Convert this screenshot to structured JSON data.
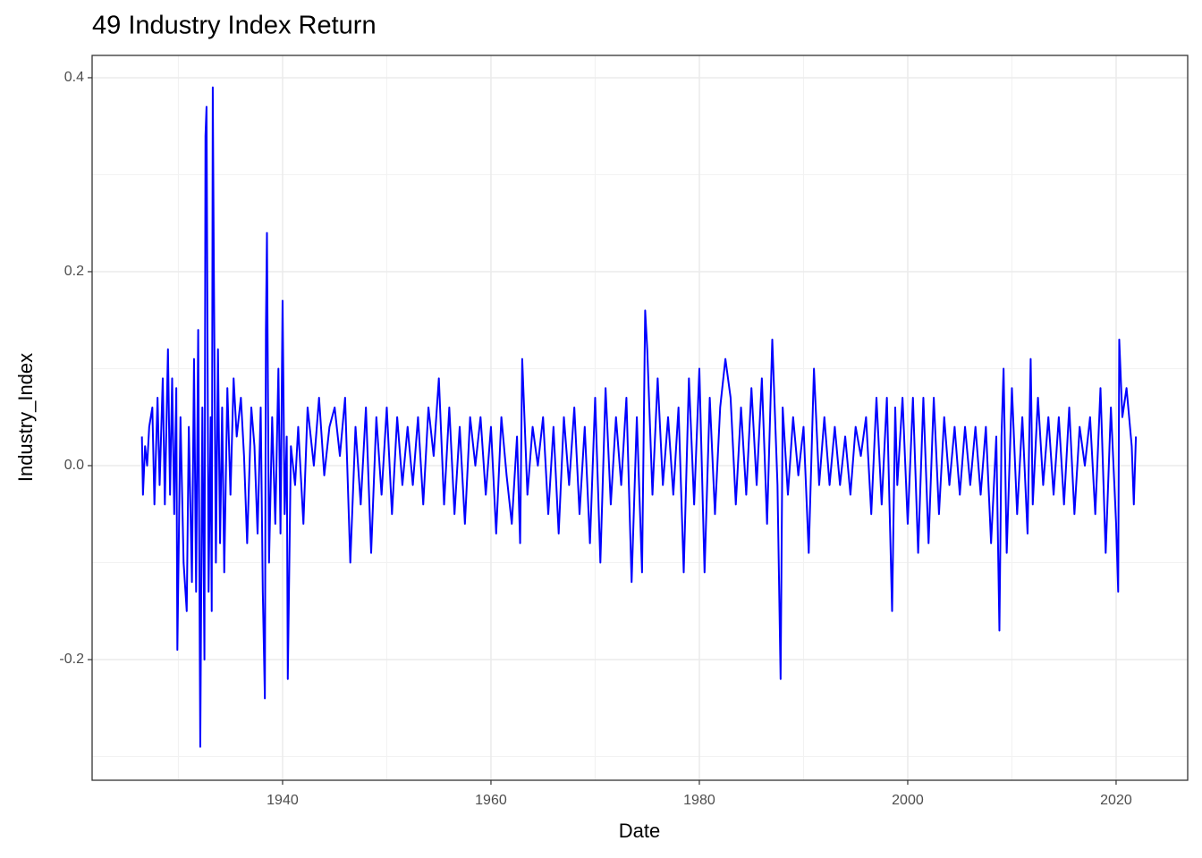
{
  "chart_data": {
    "type": "line",
    "title": "49 Industry Index Return",
    "x_label": "Date",
    "y_label": "Industry_Index",
    "xlim": [
      1921.72,
      2026.87
    ],
    "ylim": [
      -0.3244,
      0.423
    ],
    "xticks": [
      1940,
      1960,
      1980,
      2000,
      2020
    ],
    "yticks": [
      -0.2,
      {
        "value": 0,
        "label": "0.0"
      },
      0.2,
      0.4
    ],
    "xminor": [
      1930,
      1950,
      1970,
      1990,
      2010
    ],
    "yminor": [
      -0.3,
      -0.1,
      0.1,
      0.3
    ],
    "grid": true,
    "series": [
      {
        "name": "Industry_Index",
        "color": "#0000ff",
        "x": [
          1926.5,
          1926.6,
          1926.8,
          1927,
          1927.2,
          1927.5,
          1927.7,
          1928,
          1928.2,
          1928.5,
          1928.7,
          1929,
          1929.2,
          1929.4,
          1929.6,
          1929.8,
          1929.9,
          1930.2,
          1930.5,
          1930.8,
          1931,
          1931.3,
          1931.5,
          1931.7,
          1931.9,
          1932.1,
          1932.3,
          1932.5,
          1932.6,
          1932.7,
          1932.9,
          1933.1,
          1933.2,
          1933.3,
          1933.4,
          1933.6,
          1933.8,
          1934,
          1934.2,
          1934.4,
          1934.7,
          1935,
          1935.3,
          1935.6,
          1936,
          1936.3,
          1936.6,
          1937,
          1937.3,
          1937.6,
          1937.9,
          1938.1,
          1938.3,
          1938.4,
          1938.5,
          1938.7,
          1939,
          1939.3,
          1939.6,
          1939.8,
          1940,
          1940.2,
          1940.4,
          1940.5,
          1940.8,
          1941.2,
          1941.5,
          1942,
          1942.4,
          1943,
          1943.5,
          1944,
          1944.5,
          1945,
          1945.5,
          1946,
          1946.5,
          1947,
          1947.5,
          1948,
          1948.5,
          1949,
          1949.5,
          1950,
          1950.5,
          1951,
          1951.5,
          1952,
          1952.5,
          1953,
          1953.5,
          1954,
          1954.5,
          1955,
          1955.5,
          1956,
          1956.5,
          1957,
          1957.5,
          1958,
          1958.5,
          1959,
          1959.5,
          1960,
          1960.5,
          1961,
          1961.5,
          1962,
          1962.5,
          1962.8,
          1963,
          1963.5,
          1964,
          1964.5,
          1965,
          1965.5,
          1966,
          1966.5,
          1967,
          1967.5,
          1968,
          1968.5,
          1969,
          1969.5,
          1970,
          1970.5,
          1971,
          1971.5,
          1972,
          1972.5,
          1973,
          1973.5,
          1974,
          1974.5,
          1974.8,
          1975,
          1975.5,
          1976,
          1976.5,
          1977,
          1977.5,
          1978,
          1978.5,
          1979,
          1979.5,
          1980,
          1980.5,
          1981,
          1981.5,
          1982,
          1982.5,
          1983,
          1983.5,
          1984,
          1984.5,
          1985,
          1985.5,
          1986,
          1986.5,
          1987,
          1987.5,
          1987.8,
          1988,
          1988.5,
          1989,
          1989.5,
          1990,
          1990.5,
          1991,
          1991.5,
          1992,
          1992.5,
          1993,
          1993.5,
          1994,
          1994.5,
          1995,
          1995.5,
          1996,
          1996.5,
          1997,
          1997.5,
          1998,
          1998.5,
          1998.8,
          1999,
          1999.5,
          2000,
          2000.5,
          2001,
          2001.5,
          2002,
          2002.5,
          2003,
          2003.5,
          2004,
          2004.5,
          2005,
          2005.5,
          2006,
          2006.5,
          2007,
          2007.5,
          2008,
          2008.5,
          2008.8,
          2009,
          2009.2,
          2009.5,
          2010,
          2010.5,
          2011,
          2011.5,
          2011.8,
          2012,
          2012.5,
          2013,
          2013.5,
          2014,
          2014.5,
          2015,
          2015.5,
          2016,
          2016.5,
          2017,
          2017.5,
          2018,
          2018.5,
          2019,
          2019.5,
          2020,
          2020.2,
          2020.3,
          2020.6,
          2021,
          2021.5,
          2021.7,
          2021.9
        ],
        "values": [
          0.03,
          -0.03,
          0.02,
          0.0,
          0.04,
          0.06,
          -0.04,
          0.07,
          -0.02,
          0.09,
          -0.04,
          0.12,
          -0.03,
          0.09,
          -0.05,
          0.08,
          -0.19,
          0.05,
          -0.1,
          -0.15,
          0.04,
          -0.12,
          0.11,
          -0.13,
          0.14,
          -0.29,
          0.06,
          -0.2,
          0.34,
          0.37,
          -0.13,
          0.05,
          -0.15,
          0.39,
          0.21,
          -0.1,
          0.12,
          -0.08,
          0.06,
          -0.11,
          0.08,
          -0.03,
          0.09,
          0.03,
          0.07,
          0.01,
          -0.08,
          0.06,
          0.02,
          -0.07,
          0.06,
          -0.13,
          -0.24,
          0.14,
          0.24,
          -0.1,
          0.05,
          -0.06,
          0.1,
          -0.07,
          0.17,
          -0.05,
          0.03,
          -0.22,
          0.02,
          -0.02,
          0.04,
          -0.06,
          0.06,
          0.0,
          0.07,
          -0.01,
          0.04,
          0.06,
          0.01,
          0.07,
          -0.1,
          0.04,
          -0.04,
          0.06,
          -0.09,
          0.05,
          -0.03,
          0.06,
          -0.05,
          0.05,
          -0.02,
          0.04,
          -0.02,
          0.05,
          -0.04,
          0.06,
          0.01,
          0.09,
          -0.04,
          0.06,
          -0.05,
          0.04,
          -0.06,
          0.05,
          0.0,
          0.05,
          -0.03,
          0.04,
          -0.07,
          0.05,
          -0.01,
          -0.06,
          0.03,
          -0.08,
          0.11,
          -0.03,
          0.04,
          0.0,
          0.05,
          -0.05,
          0.04,
          -0.07,
          0.05,
          -0.02,
          0.06,
          -0.05,
          0.04,
          -0.08,
          0.07,
          -0.1,
          0.08,
          -0.04,
          0.05,
          -0.02,
          0.07,
          -0.12,
          0.05,
          -0.11,
          0.16,
          0.12,
          -0.03,
          0.09,
          -0.02,
          0.05,
          -0.03,
          0.06,
          -0.11,
          0.09,
          -0.04,
          0.1,
          -0.11,
          0.07,
          -0.05,
          0.06,
          0.11,
          0.07,
          -0.04,
          0.06,
          -0.03,
          0.08,
          -0.02,
          0.09,
          -0.06,
          0.13,
          -0.02,
          -0.22,
          0.06,
          -0.03,
          0.05,
          -0.01,
          0.04,
          -0.09,
          0.1,
          -0.02,
          0.05,
          -0.02,
          0.04,
          -0.02,
          0.03,
          -0.03,
          0.04,
          0.01,
          0.05,
          -0.05,
          0.07,
          -0.04,
          0.07,
          -0.15,
          0.06,
          -0.02,
          0.07,
          -0.06,
          0.07,
          -0.09,
          0.07,
          -0.08,
          0.07,
          -0.05,
          0.05,
          -0.02,
          0.04,
          -0.03,
          0.04,
          -0.02,
          0.04,
          -0.03,
          0.04,
          -0.08,
          0.03,
          -0.17,
          0.03,
          0.1,
          -0.09,
          0.08,
          -0.05,
          0.05,
          -0.07,
          0.11,
          -0.04,
          0.07,
          -0.02,
          0.05,
          -0.03,
          0.05,
          -0.04,
          0.06,
          -0.05,
          0.04,
          0.0,
          0.05,
          -0.05,
          0.08,
          -0.09,
          0.06,
          -0.06,
          -0.13,
          0.13,
          0.05,
          0.08,
          0.02,
          -0.04,
          0.03
        ]
      }
    ]
  }
}
